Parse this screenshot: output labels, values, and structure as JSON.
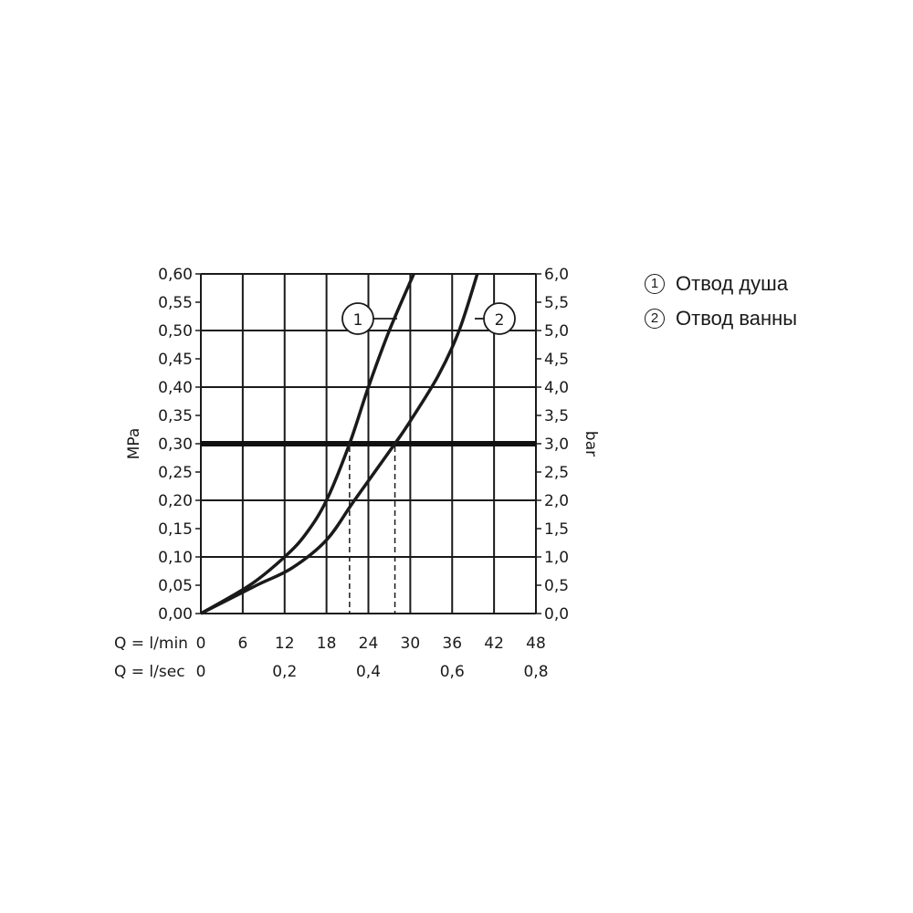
{
  "chart_data": {
    "type": "line",
    "y_left_label": "MPa",
    "y_right_label": "bar",
    "x_row_labels": [
      "Q = l/min",
      "Q = l/sec"
    ],
    "x_ticks_lmin": [
      "0",
      "6",
      "12",
      "18",
      "24",
      "30",
      "36",
      "42",
      "48"
    ],
    "x_ticks_lsec": [
      "0",
      "0,2",
      "0,4",
      "0,6",
      "0,8"
    ],
    "y_ticks_mpa": [
      "0,00",
      "0,05",
      "0,10",
      "0,15",
      "0,20",
      "0,25",
      "0,30",
      "0,35",
      "0,40",
      "0,45",
      "0,50",
      "0,55",
      "0,60"
    ],
    "y_ticks_bar": [
      "0,0",
      "0,5",
      "1,0",
      "1,5",
      "2,0",
      "2,5",
      "3,0",
      "3,5",
      "4,0",
      "4,5",
      "5,0",
      "5,5",
      "6,0"
    ],
    "xlim": [
      0,
      48
    ],
    "ylim": [
      0,
      0.6
    ],
    "grid": true,
    "reference_line": {
      "y": 0.3
    },
    "series": [
      {
        "name": "1",
        "x": [
          0,
          7,
          12,
          15,
          18,
          21.3,
          24,
          27,
          30.5
        ],
        "y": [
          0,
          0.05,
          0.1,
          0.14,
          0.2,
          0.3,
          0.4,
          0.5,
          0.6
        ],
        "drop_x": 21.3
      },
      {
        "name": "2",
        "x": [
          0,
          8,
          13,
          18,
          22,
          27.8,
          30,
          34,
          37,
          39.6
        ],
        "y": [
          0,
          0.05,
          0.08,
          0.13,
          0.2,
          0.3,
          0.34,
          0.42,
          0.5,
          0.6
        ],
        "drop_x": 27.8
      }
    ]
  },
  "legend": [
    {
      "num": "1",
      "label": "Отвод душа"
    },
    {
      "num": "2",
      "label": "Отвод ванны"
    }
  ]
}
